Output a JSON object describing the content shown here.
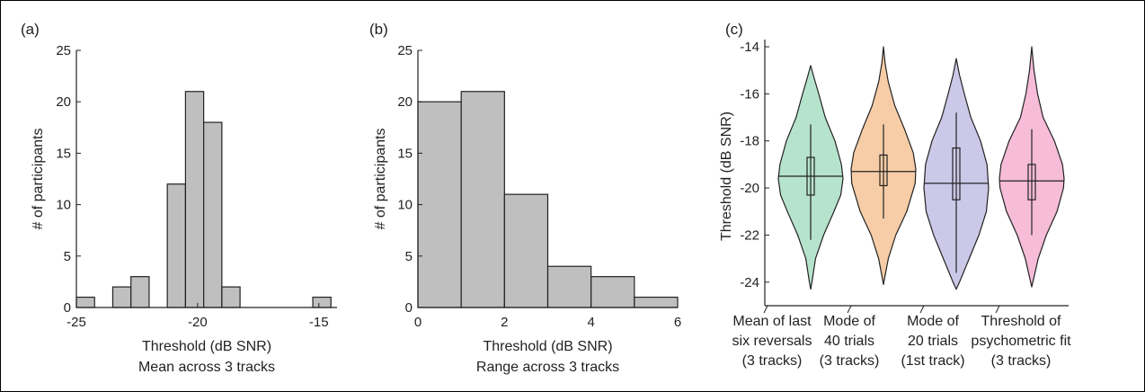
{
  "chart_data": [
    {
      "type": "bar",
      "panel_label": "(a)",
      "xlabel": "Threshold (dB SNR)",
      "xlabel2": "Mean across 3 tracks",
      "ylabel": "# of participants",
      "xlim": [
        -25,
        -14.25
      ],
      "ylim": [
        0,
        25
      ],
      "xticks": [
        -25,
        -20,
        -15
      ],
      "yticks": [
        0,
        5,
        10,
        15,
        20,
        25
      ],
      "bin_width": 0.75,
      "bars": [
        {
          "x0": -25,
          "value": 1
        },
        {
          "x0": -24.25,
          "value": 0
        },
        {
          "x0": -23.5,
          "value": 2
        },
        {
          "x0": -22.75,
          "value": 3
        },
        {
          "x0": -22,
          "value": 0
        },
        {
          "x0": -21.25,
          "value": 12
        },
        {
          "x0": -20.5,
          "value": 21
        },
        {
          "x0": -19.75,
          "value": 18
        },
        {
          "x0": -19,
          "value": 2
        },
        {
          "x0": -18.25,
          "value": 0
        },
        {
          "x0": -17.5,
          "value": 0
        },
        {
          "x0": -16.75,
          "value": 0
        },
        {
          "x0": -16,
          "value": 0
        },
        {
          "x0": -15.25,
          "value": 1
        }
      ],
      "bar_color": "#bfbfbf"
    },
    {
      "type": "bar",
      "panel_label": "(b)",
      "xlabel": "Threshold (dB SNR)",
      "xlabel2": "Range across 3 tracks",
      "ylabel": "# of participants",
      "xlim": [
        0,
        6
      ],
      "ylim": [
        0,
        25
      ],
      "xticks": [
        0,
        2,
        4,
        6
      ],
      "yticks": [
        0,
        5,
        10,
        15,
        20,
        25
      ],
      "bin_width": 1,
      "bars": [
        {
          "x0": 0,
          "value": 20
        },
        {
          "x0": 1,
          "value": 21
        },
        {
          "x0": 2,
          "value": 11
        },
        {
          "x0": 3,
          "value": 4
        },
        {
          "x0": 4,
          "value": 3
        },
        {
          "x0": 5,
          "value": 1
        }
      ],
      "bar_color": "#bfbfbf"
    },
    {
      "type": "violin",
      "panel_label": "(c)",
      "ylabel": "Threshold (dB SNR)",
      "ylim": [
        -25,
        -14
      ],
      "yticks": [
        -24,
        -22,
        -20,
        -18,
        -16,
        -14
      ],
      "categories": [
        [
          "Mean of last",
          "six reversals",
          "(3 tracks)"
        ],
        [
          "Mode of",
          "40 trials",
          "(3 tracks)"
        ],
        [
          "Mode of",
          "20 trials",
          "(1st track)"
        ],
        [
          "Threshold of",
          "psychometric fit",
          "(3 tracks)"
        ]
      ],
      "series": [
        {
          "color": "#b6e3cc",
          "min": -24.3,
          "max": -14.8,
          "q1": -20.3,
          "median": -19.5,
          "q3": -18.7,
          "whisker_low": -22.2,
          "whisker_high": -17.3,
          "profile": [
            [
              -24.3,
              0.0
            ],
            [
              -24.0,
              0.04
            ],
            [
              -23.0,
              0.15
            ],
            [
              -22.0,
              0.4
            ],
            [
              -21.0,
              0.72
            ],
            [
              -20.3,
              0.93
            ],
            [
              -19.6,
              1.0
            ],
            [
              -19.0,
              0.95
            ],
            [
              -18.0,
              0.75
            ],
            [
              -17.0,
              0.45
            ],
            [
              -16.0,
              0.25
            ],
            [
              -15.3,
              0.1
            ],
            [
              -14.8,
              0.0
            ]
          ]
        },
        {
          "color": "#f6cda6",
          "min": -24.1,
          "max": -14.0,
          "q1": -19.9,
          "median": -19.3,
          "q3": -18.6,
          "whisker_low": -21.3,
          "whisker_high": -17.3,
          "profile": [
            [
              -24.1,
              0.0
            ],
            [
              -23.8,
              0.04
            ],
            [
              -23.0,
              0.15
            ],
            [
              -22.0,
              0.38
            ],
            [
              -21.0,
              0.72
            ],
            [
              -19.8,
              0.98
            ],
            [
              -19.2,
              1.0
            ],
            [
              -18.5,
              0.92
            ],
            [
              -17.5,
              0.65
            ],
            [
              -16.5,
              0.35
            ],
            [
              -15.5,
              0.15
            ],
            [
              -14.7,
              0.05
            ],
            [
              -14.0,
              0.0
            ]
          ]
        },
        {
          "color": "#cbc8e8",
          "min": -24.3,
          "max": -14.5,
          "q1": -20.5,
          "median": -19.8,
          "q3": -18.3,
          "whisker_low": -23.6,
          "whisker_high": -16.8,
          "profile": [
            [
              -24.3,
              0.0
            ],
            [
              -24.0,
              0.1
            ],
            [
              -23.0,
              0.4
            ],
            [
              -22.0,
              0.7
            ],
            [
              -21.0,
              0.93
            ],
            [
              -20.0,
              1.0
            ],
            [
              -19.0,
              0.95
            ],
            [
              -18.0,
              0.75
            ],
            [
              -17.0,
              0.45
            ],
            [
              -16.0,
              0.25
            ],
            [
              -15.2,
              0.1
            ],
            [
              -14.5,
              0.0
            ]
          ]
        },
        {
          "color": "#f6bcd8",
          "min": -24.2,
          "max": -14.0,
          "q1": -20.5,
          "median": -19.7,
          "q3": -19.0,
          "whisker_low": -22.0,
          "whisker_high": -17.5,
          "profile": [
            [
              -24.2,
              0.0
            ],
            [
              -23.9,
              0.05
            ],
            [
              -23.0,
              0.2
            ],
            [
              -22.0,
              0.45
            ],
            [
              -21.0,
              0.78
            ],
            [
              -20.0,
              0.98
            ],
            [
              -19.6,
              1.0
            ],
            [
              -19.0,
              0.95
            ],
            [
              -18.0,
              0.7
            ],
            [
              -17.0,
              0.35
            ],
            [
              -16.0,
              0.18
            ],
            [
              -15.0,
              0.07
            ],
            [
              -14.0,
              0.0
            ]
          ]
        }
      ]
    }
  ]
}
